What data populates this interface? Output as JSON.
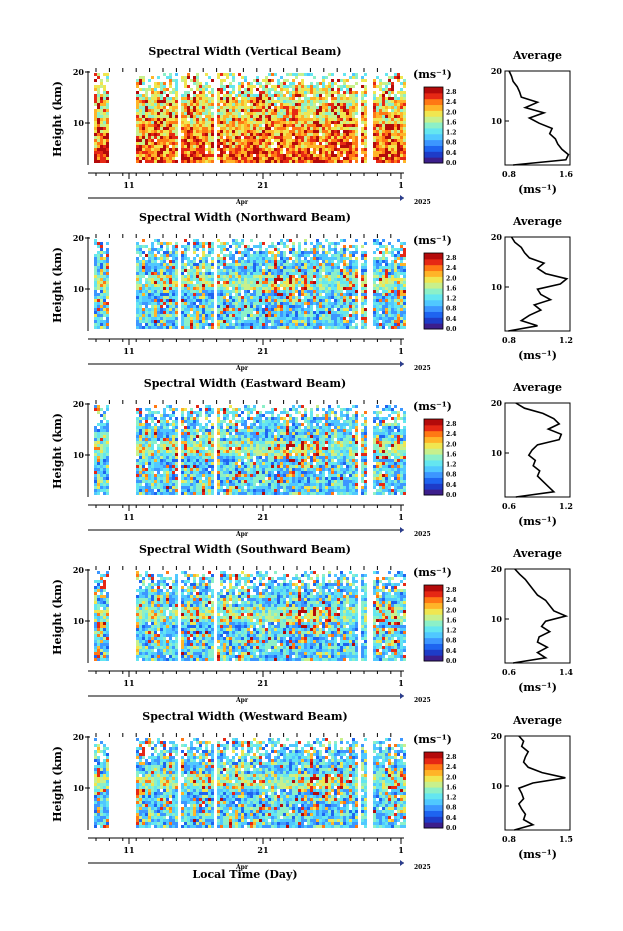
{
  "colors": {
    "scale": [
      "#3c1e8c",
      "#1e3cc8",
      "#1e64f0",
      "#3c96ff",
      "#50c8ff",
      "#64e6f0",
      "#8cf0c8",
      "#c8f08c",
      "#f0e650",
      "#ffb428",
      "#ff7814",
      "#e62814",
      "#b40a0a"
    ],
    "line": "#000000"
  },
  "time_axis": {
    "day_ticks": [
      "11",
      "21",
      "1"
    ],
    "month_label": "Apr",
    "year_label": "2025",
    "xlabel": "Local Time (Day)"
  },
  "colorbar": {
    "unit_label": "(ms⁻¹)",
    "ticks": [
      "0.0",
      "0.4",
      "0.8",
      "1.2",
      "1.6",
      "2.0",
      "2.4",
      "2.8"
    ],
    "range": [
      0,
      3.0
    ]
  },
  "average_title": "Average",
  "average_unit": "(ms⁻¹)",
  "chart_data": [
    {
      "type": "heatmap",
      "title": "Spectral Width (Vertical Beam)",
      "ylabel": "Height (km)",
      "yticks": [
        "20",
        "10"
      ],
      "ylim": [
        2,
        20
      ],
      "average": {
        "type": "line",
        "title": "Average",
        "xticks": [
          "0.8",
          "1.6"
        ],
        "xlim": [
          0.8,
          1.6
        ],
        "height": [
          2,
          3,
          4,
          5,
          6,
          7,
          8,
          9,
          10,
          11,
          12,
          13,
          14,
          15,
          16,
          17,
          18,
          19,
          20
        ],
        "values": [
          0.9,
          1.55,
          1.58,
          1.5,
          1.45,
          1.42,
          1.35,
          1.38,
          1.22,
          1.1,
          1.28,
          1.05,
          1.2,
          1.0,
          0.98,
          0.95,
          0.9,
          0.88,
          0.85
        ]
      }
    },
    {
      "type": "heatmap",
      "title": "Spectral Width (Northward Beam)",
      "ylabel": "Height (km)",
      "yticks": [
        "20",
        "10"
      ],
      "ylim": [
        2,
        20
      ],
      "average": {
        "type": "line",
        "title": "Average",
        "xticks": [
          "0.8",
          "1.2"
        ],
        "xlim": [
          0.8,
          1.2
        ],
        "height": [
          2,
          3,
          4,
          5,
          6,
          7,
          8,
          9,
          10,
          11,
          12,
          13,
          14,
          15,
          16,
          17,
          18,
          19,
          20
        ],
        "values": [
          0.82,
          1.0,
          0.9,
          0.95,
          1.02,
          0.98,
          1.08,
          1.02,
          1.0,
          1.14,
          1.18,
          1.05,
          1.0,
          1.04,
          0.95,
          0.92,
          0.9,
          0.86,
          0.84
        ]
      }
    },
    {
      "type": "heatmap",
      "title": "Spectral Width (Eastward Beam)",
      "ylabel": "Height (km)",
      "yticks": [
        "20",
        "10"
      ],
      "ylim": [
        2,
        20
      ],
      "average": {
        "type": "line",
        "title": "Average",
        "xticks": [
          "0.6",
          "1.2"
        ],
        "xlim": [
          0.6,
          1.2
        ],
        "height": [
          2,
          3,
          4,
          5,
          6,
          7,
          8,
          9,
          10,
          11,
          12,
          13,
          14,
          15,
          16,
          17,
          18,
          19,
          20
        ],
        "values": [
          0.7,
          1.05,
          1.0,
          0.95,
          0.9,
          0.92,
          0.86,
          0.88,
          0.82,
          0.85,
          0.9,
          1.1,
          1.12,
          1.0,
          1.1,
          1.05,
          0.95,
          0.78,
          0.7
        ]
      }
    },
    {
      "type": "heatmap",
      "title": "Spectral Width (Southward Beam)",
      "ylabel": "Height (km)",
      "yticks": [
        "20",
        "10"
      ],
      "ylim": [
        2,
        20
      ],
      "average": {
        "type": "line",
        "title": "Average",
        "xticks": [
          "0.6",
          "1.4"
        ],
        "xlim": [
          0.6,
          1.4
        ],
        "height": [
          2,
          3,
          4,
          5,
          6,
          7,
          8,
          9,
          10,
          11,
          12,
          13,
          14,
          15,
          16,
          17,
          18,
          19,
          20
        ],
        "values": [
          0.7,
          1.1,
          1.0,
          1.12,
          1.0,
          1.02,
          1.15,
          1.05,
          1.1,
          1.35,
          1.2,
          1.15,
          1.1,
          1.0,
          0.95,
          0.9,
          0.85,
          0.78,
          0.72
        ]
      }
    },
    {
      "type": "heatmap",
      "title": "Spectral Width (Westward Beam)",
      "ylabel": "Height (km)",
      "yticks": [
        "20",
        "10"
      ],
      "ylim": [
        2,
        20
      ],
      "average": {
        "type": "line",
        "title": "Average",
        "xticks": [
          "0.8",
          "1.5"
        ],
        "xlim": [
          0.8,
          1.5
        ],
        "height": [
          2,
          3,
          4,
          5,
          6,
          7,
          8,
          9,
          10,
          11,
          12,
          13,
          14,
          15,
          16,
          17,
          18,
          19,
          20
        ],
        "values": [
          0.9,
          1.1,
          1.0,
          1.02,
          0.98,
          0.95,
          1.0,
          0.98,
          0.95,
          1.1,
          1.45,
          1.2,
          1.05,
          1.0,
          1.02,
          1.05,
          0.98,
          1.0,
          0.95
        ]
      }
    }
  ]
}
